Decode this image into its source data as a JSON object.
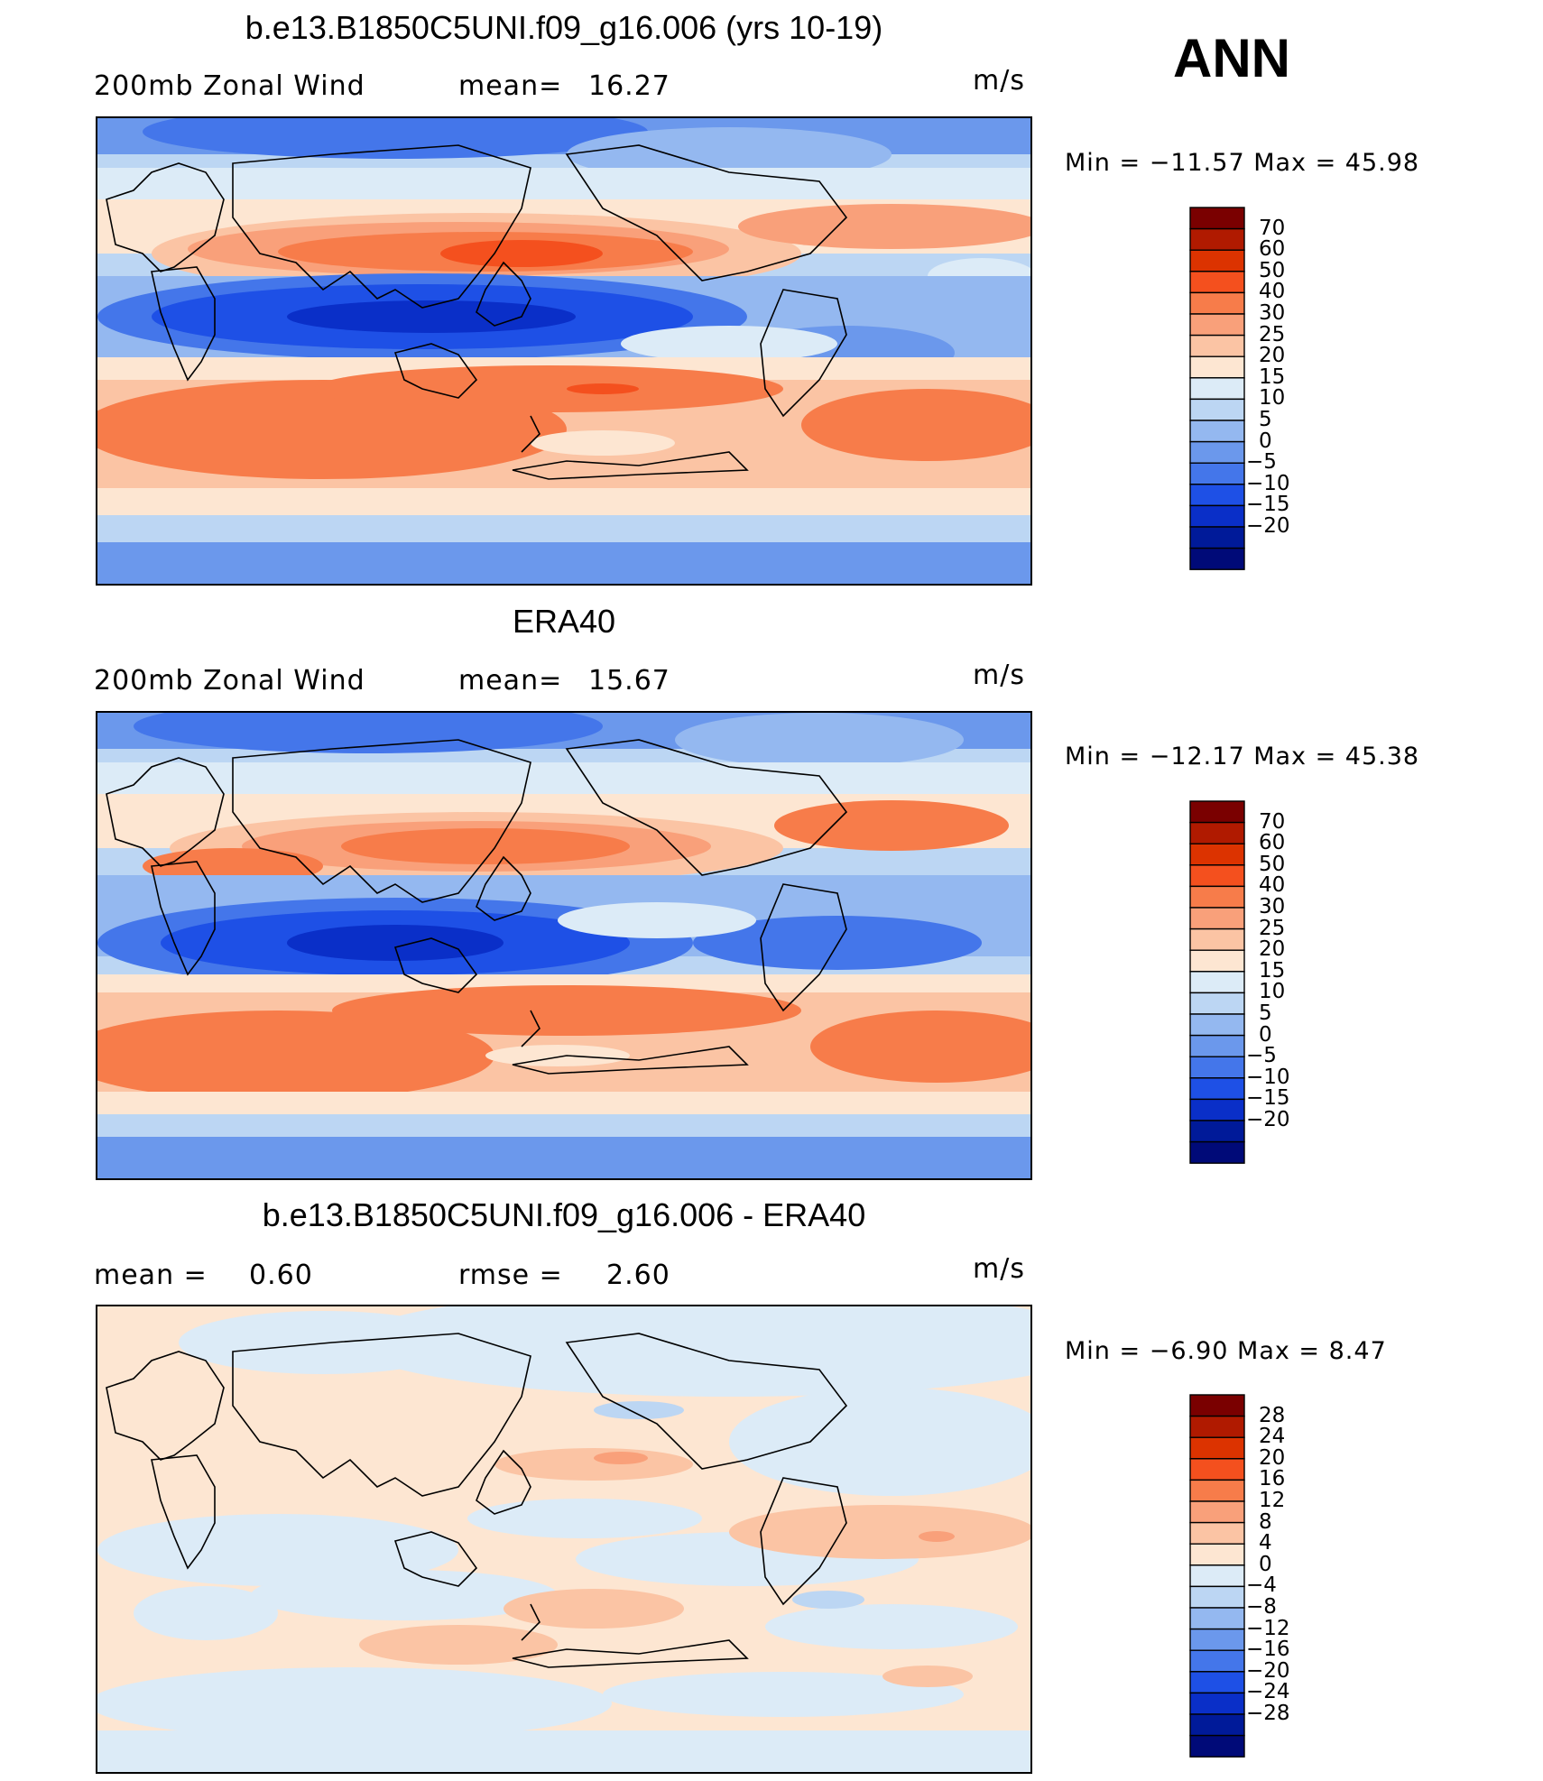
{
  "season": "ANN",
  "panels": [
    {
      "title": "b.e13.B1850C5UNI.f09_g16.006 (yrs 10-19)",
      "variable": "200mb Zonal Wind",
      "stat_label": "mean=",
      "stat_value": "16.27",
      "units": "m/s",
      "minmax": "Min  =  −11.57  Max  =    45.98"
    },
    {
      "title": "ERA40",
      "variable": "200mb Zonal Wind",
      "stat_label": "mean=",
      "stat_value": "15.67",
      "units": "m/s",
      "minmax": "Min  =  −12.17  Max  =    45.38"
    },
    {
      "title": "b.e13.B1850C5UNI.f09_g16.006 - ERA40",
      "mean_label": "mean  =",
      "mean_value": "0.60",
      "rmse_label": "rmse  =",
      "rmse_value": "2.60",
      "units": "m/s",
      "minmax": "Min  =    −6.90  Max  =      8.47"
    }
  ],
  "colorbars": {
    "abs_levels": [
      "70",
      "60",
      "50",
      "40",
      "30",
      "25",
      "20",
      "15",
      "10",
      "5",
      "0",
      "−5",
      "−10",
      "−15",
      "−20"
    ],
    "abs_colors": [
      "#7a0000",
      "#b01a00",
      "#dc3300",
      "#f4501e",
      "#f77c4a",
      "#f9a07a",
      "#fbc4a4",
      "#fde6d2",
      "#dcebf7",
      "#bcd6f3",
      "#94b8f0",
      "#6b98ec",
      "#4476ea",
      "#1e50e6",
      "#0a2fc8",
      "#001a99",
      "#000a78"
    ],
    "diff_levels": [
      "28",
      "24",
      "20",
      "16",
      "12",
      "8",
      "4",
      "0",
      "−4",
      "−8",
      "−12",
      "−16",
      "−20",
      "−24",
      "−28"
    ],
    "diff_colors": [
      "#7a0000",
      "#b01a00",
      "#dc3300",
      "#f4501e",
      "#f77c4a",
      "#f9a07a",
      "#fbc4a4",
      "#fde6d2",
      "#dcebf7",
      "#bcd6f3",
      "#94b8f0",
      "#6b98ec",
      "#4476ea",
      "#1e50e6",
      "#0a2fc8",
      "#001a99",
      "#000a78"
    ]
  }
}
